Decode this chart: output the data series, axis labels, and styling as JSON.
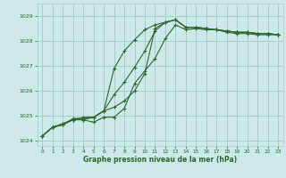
{
  "background_color": "#cce8e8",
  "grid_color": "#aacccc",
  "line_color": "#2d6a2d",
  "xlabel": "Graphe pression niveau de la mer (hPa)",
  "xlim": [
    -0.5,
    23.5
  ],
  "ylim": [
    1023.8,
    1029.5
  ],
  "yticks": [
    1024,
    1025,
    1026,
    1027,
    1028,
    1029
  ],
  "xticks": [
    0,
    1,
    2,
    3,
    4,
    5,
    6,
    7,
    8,
    9,
    10,
    11,
    12,
    13,
    14,
    15,
    16,
    17,
    18,
    19,
    20,
    21,
    22,
    23
  ],
  "series": [
    [
      1024.2,
      1024.55,
      1024.65,
      1024.85,
      1024.85,
      1024.75,
      1024.95,
      1024.95,
      1025.3,
      1026.3,
      1026.8,
      1027.3,
      1028.1,
      1028.65,
      1028.45,
      1028.5,
      1028.45,
      1028.45,
      1028.35,
      1028.3,
      1028.3,
      1028.25,
      1028.25,
      1028.25
    ],
    [
      1024.2,
      1024.55,
      1024.65,
      1024.85,
      1024.95,
      1024.95,
      1025.2,
      1025.35,
      1025.6,
      1026.0,
      1026.7,
      1028.5,
      1028.75,
      1028.85,
      1028.55,
      1028.55,
      1028.5,
      1028.45,
      1028.4,
      1028.35,
      1028.35,
      1028.3,
      1028.3,
      1028.25
    ],
    [
      1024.2,
      1024.55,
      1024.65,
      1024.9,
      1024.9,
      1024.95,
      1025.2,
      1025.85,
      1026.35,
      1026.95,
      1027.6,
      1028.4,
      1028.75,
      1028.85,
      1028.55,
      1028.55,
      1028.5,
      1028.45,
      1028.4,
      1028.35,
      1028.35,
      1028.3,
      1028.3,
      1028.25
    ],
    [
      1024.2,
      1024.55,
      1024.7,
      1024.85,
      1024.85,
      1024.95,
      1025.2,
      1026.9,
      1027.6,
      1028.05,
      1028.45,
      1028.65,
      1028.75,
      1028.85,
      1028.55,
      1028.55,
      1028.5,
      1028.45,
      1028.4,
      1028.35,
      1028.35,
      1028.3,
      1028.3,
      1028.25
    ]
  ]
}
